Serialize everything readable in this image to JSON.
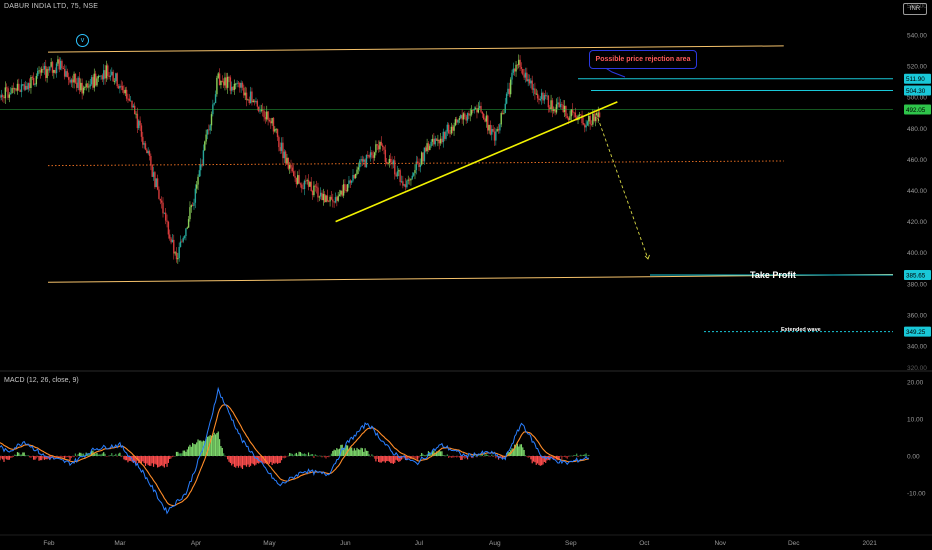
{
  "header": {
    "title": "DABUR INDIA LTD, 75, NSE",
    "currency_button": "INR",
    "macd_label": "MACD (12, 26, close, 9)"
  },
  "annotations": {
    "rejection": "Possible price rejection area",
    "take_profit": "Take Profit",
    "extended": "Extended wave",
    "wave_mark": "v"
  },
  "colors": {
    "background": "#000000",
    "up_candle": "#26a69a",
    "up_candle_light": "#8ad05a",
    "down_candle": "#d83c3c",
    "channel": "#f5c26b",
    "trendline": "#f2f200",
    "dotted_support": "#e06a20",
    "level_line": "#19c8d8",
    "green_line": "#2ec44a",
    "macd_line": "#2a7fff",
    "signal_line": "#ff8c28"
  },
  "chart_data": [
    {
      "type": "candlestick",
      "title": "DABUR INDIA LTD, 75, NSE",
      "x_ticks": [
        "Feb",
        "Mar",
        "Apr",
        "May",
        "Jun",
        "Jul",
        "Aug",
        "Sep",
        "Oct",
        "Nov",
        "Dec",
        "2021"
      ],
      "y_ticks": [
        340,
        360,
        380,
        400,
        420,
        440,
        460,
        480,
        500,
        520,
        540
      ],
      "ylim": [
        330,
        560
      ],
      "top_partial_label": "560.00",
      "bottom_partial_label": "320.00",
      "price_labels": [
        {
          "value": "511.90",
          "kind": "level"
        },
        {
          "value": "504.30",
          "kind": "level"
        },
        {
          "value": "492.05",
          "kind": "current"
        },
        {
          "value": "385.65",
          "kind": "level"
        },
        {
          "value": "349.25",
          "kind": "level"
        }
      ],
      "price_path": [
        {
          "date": "2020-01-01",
          "price": 478
        },
        {
          "date": "2020-01-10",
          "price": 500
        },
        {
          "date": "2020-01-25",
          "price": 511
        },
        {
          "date": "2020-02-05",
          "price": 521
        },
        {
          "date": "2020-02-15",
          "price": 505
        },
        {
          "date": "2020-02-25",
          "price": 518
        },
        {
          "date": "2020-03-05",
          "price": 500
        },
        {
          "date": "2020-03-15",
          "price": 448
        },
        {
          "date": "2020-03-24",
          "price": 395
        },
        {
          "date": "2020-04-01",
          "price": 440
        },
        {
          "date": "2020-04-10",
          "price": 512
        },
        {
          "date": "2020-04-20",
          "price": 505
        },
        {
          "date": "2020-05-01",
          "price": 487
        },
        {
          "date": "2020-05-10",
          "price": 450
        },
        {
          "date": "2020-05-20",
          "price": 440
        },
        {
          "date": "2020-05-28",
          "price": 432
        },
        {
          "date": "2020-06-05",
          "price": 452
        },
        {
          "date": "2020-06-15",
          "price": 468
        },
        {
          "date": "2020-06-25",
          "price": 445
        },
        {
          "date": "2020-07-05",
          "price": 468
        },
        {
          "date": "2020-07-15",
          "price": 482
        },
        {
          "date": "2020-07-25",
          "price": 494
        },
        {
          "date": "2020-08-01",
          "price": 475
        },
        {
          "date": "2020-08-10",
          "price": 522
        },
        {
          "date": "2020-08-20",
          "price": 500
        },
        {
          "date": "2020-08-30",
          "price": 490
        },
        {
          "date": "2020-09-07",
          "price": 484
        },
        {
          "date": "2020-09-15",
          "price": 492
        }
      ],
      "channel": {
        "upper": [
          {
            "date": "2020-01-01",
            "price": 529
          },
          {
            "date": "2020-12-01",
            "price": 533
          }
        ],
        "lower": [
          {
            "date": "2020-01-01",
            "price": 381
          },
          {
            "date": "2020-12-01",
            "price": 386
          }
        ]
      },
      "trendline": [
        {
          "date": "2020-05-28",
          "price": 420
        },
        {
          "date": "2020-09-20",
          "price": 497
        }
      ],
      "dotted_support": [
        {
          "date": "2020-01-01",
          "price": 456
        },
        {
          "date": "2020-12-01",
          "price": 459
        }
      ],
      "projection": [
        {
          "date": "2020-09-22",
          "price": 490
        },
        {
          "date": "2020-10-15",
          "price": 396
        }
      ],
      "green_level": 492.05
    },
    {
      "type": "line",
      "title": "MACD (12, 26, close, 9)",
      "y_ticks": [
        -10,
        0,
        10,
        20
      ],
      "ylim": [
        -17,
        23
      ],
      "macd_path": [
        {
          "date": "2020-01-01",
          "value": 0
        },
        {
          "date": "2020-01-06",
          "value": 6
        },
        {
          "date": "2020-01-15",
          "value": 1
        },
        {
          "date": "2020-01-22",
          "value": 4
        },
        {
          "date": "2020-01-30",
          "value": 0
        },
        {
          "date": "2020-02-10",
          "value": -2
        },
        {
          "date": "2020-02-20",
          "value": 2
        },
        {
          "date": "2020-03-01",
          "value": 3
        },
        {
          "date": "2020-03-10",
          "value": -4
        },
        {
          "date": "2020-03-20",
          "value": -15
        },
        {
          "date": "2020-03-28",
          "value": -10
        },
        {
          "date": "2020-04-05",
          "value": 4
        },
        {
          "date": "2020-04-10",
          "value": 18
        },
        {
          "date": "2020-04-20",
          "value": 4
        },
        {
          "date": "2020-05-05",
          "value": -8
        },
        {
          "date": "2020-05-15",
          "value": -4
        },
        {
          "date": "2020-05-25",
          "value": -5
        },
        {
          "date": "2020-06-01",
          "value": 3
        },
        {
          "date": "2020-06-10",
          "value": 9
        },
        {
          "date": "2020-06-20",
          "value": 1
        },
        {
          "date": "2020-06-30",
          "value": -2
        },
        {
          "date": "2020-07-10",
          "value": 3
        },
        {
          "date": "2020-07-20",
          "value": 0
        },
        {
          "date": "2020-07-30",
          "value": 1
        },
        {
          "date": "2020-08-05",
          "value": -1
        },
        {
          "date": "2020-08-12",
          "value": 9
        },
        {
          "date": "2020-08-20",
          "value": 0
        },
        {
          "date": "2020-08-30",
          "value": -2
        },
        {
          "date": "2020-09-10",
          "value": 0
        },
        {
          "date": "2020-09-20",
          "value": -0.5
        }
      ]
    }
  ]
}
